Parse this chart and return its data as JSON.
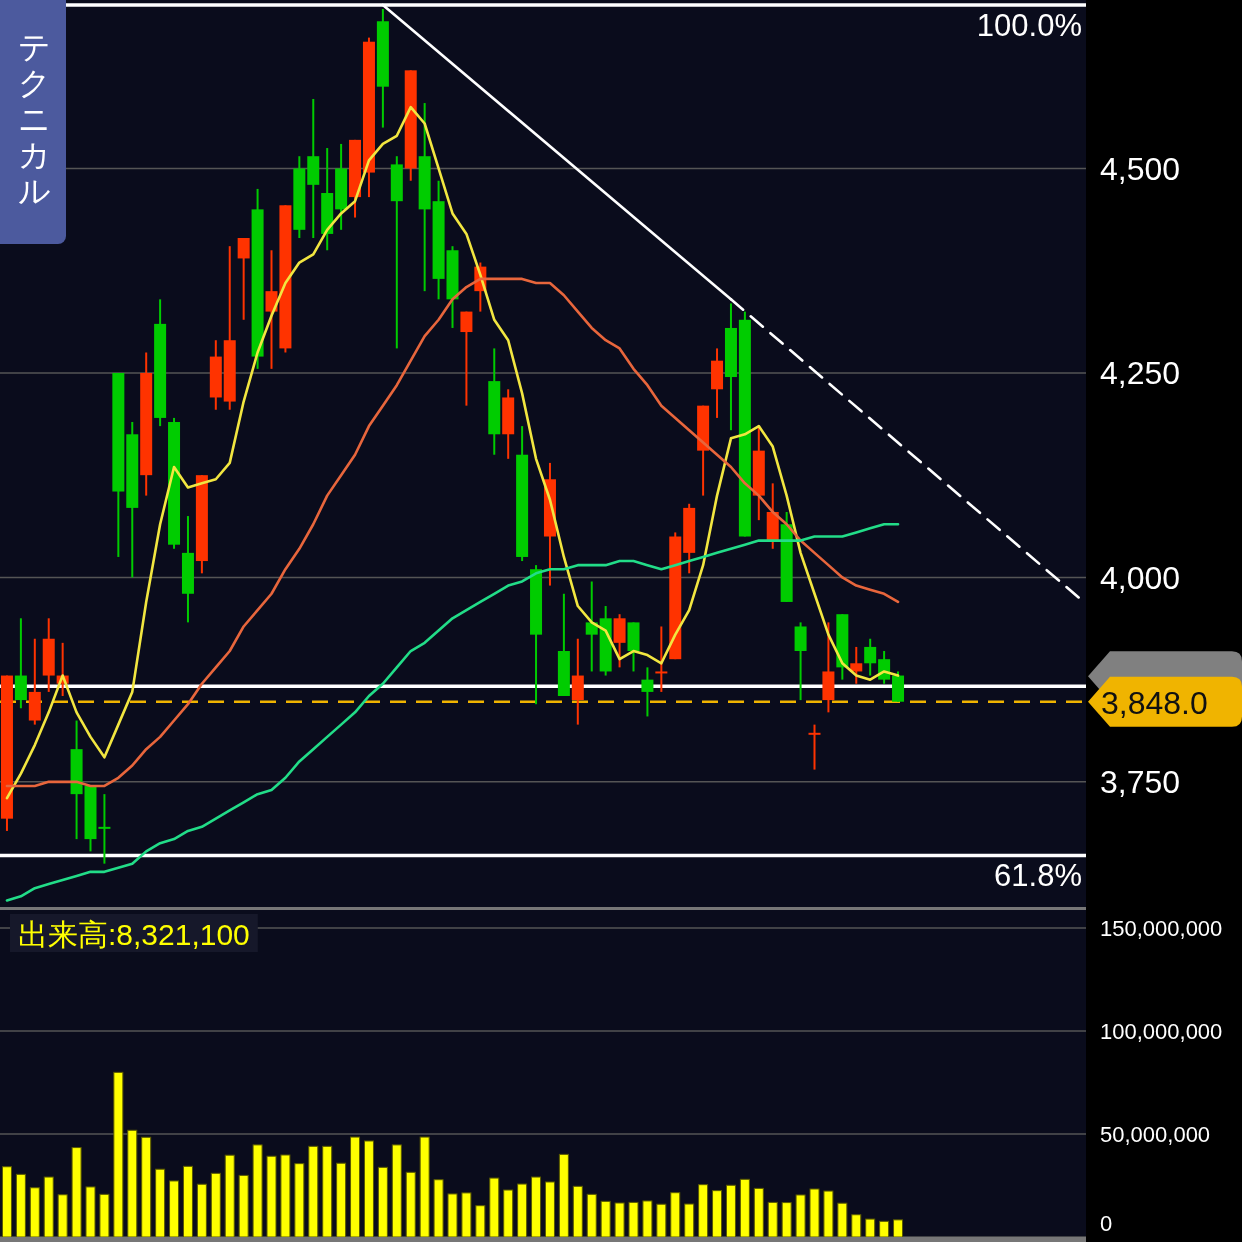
{
  "chart_data": [
    {
      "type": "candlestick",
      "annotations": [
        "テクニカル",
        {
          "text": "100.0%",
          "y": 4700
        },
        {
          "text": "61.8%",
          "y": 3660
        }
      ],
      "categories": [
        null,
        null,
        null,
        null,
        null,
        null,
        null,
        null,
        null,
        null,
        null,
        null,
        null,
        null,
        null,
        null,
        null,
        null,
        null,
        null,
        null,
        null,
        null,
        null,
        null,
        null,
        null,
        null,
        null,
        null,
        null,
        null,
        null,
        null,
        null,
        null,
        null,
        null,
        null,
        null,
        null,
        null,
        null,
        null,
        null,
        null,
        null,
        null,
        null,
        null,
        null,
        null,
        null,
        null,
        null,
        null,
        null,
        null,
        null,
        null,
        null,
        null,
        null,
        null,
        null,
        null,
        null,
        null,
        null,
        null,
        null,
        null,
        null,
        null,
        null,
        null,
        null,
        null
      ],
      "ohlc": [
        [
          3705,
          3880,
          3690,
          3880
        ],
        [
          3880,
          3950,
          3840,
          3850
        ],
        [
          3825,
          3925,
          3820,
          3860
        ],
        [
          3880,
          3950,
          3860,
          3925
        ],
        [
          3870,
          3920,
          3855,
          3880
        ],
        [
          3790,
          3825,
          3680,
          3735
        ],
        [
          3745,
          3745,
          3665,
          3680
        ],
        [
          3695,
          3735,
          3650,
          3695
        ],
        [
          4250,
          4250,
          4025,
          4105
        ],
        [
          4175,
          4190,
          4000,
          4085
        ],
        [
          4125,
          4275,
          4100,
          4250
        ],
        [
          4310,
          4340,
          4185,
          4195
        ],
        [
          4190,
          4195,
          4035,
          4040
        ],
        [
          4030,
          4075,
          3945,
          3980
        ],
        [
          4020,
          4125,
          4005,
          4125
        ],
        [
          4220,
          4290,
          4205,
          4270
        ],
        [
          4215,
          4405,
          4205,
          4290
        ],
        [
          4390,
          4415,
          4315,
          4415
        ],
        [
          4450,
          4475,
          4255,
          4270
        ],
        [
          4325,
          4400,
          4255,
          4350
        ],
        [
          4280,
          4455,
          4275,
          4455
        ],
        [
          4500,
          4515,
          4415,
          4425
        ],
        [
          4515,
          4585,
          4415,
          4480
        ],
        [
          4470,
          4525,
          4400,
          4420
        ],
        [
          4500,
          4530,
          4425,
          4450
        ],
        [
          4465,
          4535,
          4440,
          4535
        ],
        [
          4495,
          4660,
          4465,
          4655
        ],
        [
          4680,
          4695,
          4550,
          4600
        ],
        [
          4505,
          4515,
          4280,
          4460
        ],
        [
          4500,
          4620,
          4485,
          4620
        ],
        [
          4515,
          4580,
          4350,
          4450
        ],
        [
          4460,
          4485,
          4340,
          4365
        ],
        [
          4400,
          4405,
          4305,
          4340
        ],
        [
          4300,
          4325,
          4210,
          4325
        ],
        [
          4350,
          4385,
          4325,
          4380
        ],
        [
          4240,
          4280,
          4150,
          4175
        ],
        [
          4175,
          4230,
          4145,
          4220
        ],
        [
          4150,
          4185,
          4020,
          4025
        ],
        [
          4010,
          4015,
          3845,
          3930
        ],
        [
          4050,
          4140,
          3990,
          4120
        ],
        [
          3910,
          3980,
          3855,
          3855
        ],
        [
          3850,
          3925,
          3820,
          3880
        ],
        [
          3945,
          3995,
          3885,
          3930
        ],
        [
          3950,
          3965,
          3880,
          3885
        ],
        [
          3920,
          3955,
          3890,
          3950
        ],
        [
          3945,
          3945,
          3885,
          3910
        ],
        [
          3875,
          3890,
          3830,
          3860
        ],
        [
          3885,
          3940,
          3860,
          3885
        ],
        [
          3900,
          4055,
          3900,
          4050
        ],
        [
          4030,
          4090,
          4005,
          4085
        ],
        [
          4155,
          4210,
          4100,
          4210
        ],
        [
          4230,
          4280,
          4195,
          4265
        ],
        [
          4305,
          4335,
          4180,
          4245
        ],
        [
          4315,
          4325,
          4050,
          4050
        ],
        [
          4100,
          4185,
          4070,
          4155
        ],
        [
          4045,
          4115,
          4035,
          4080
        ],
        [
          4065,
          4080,
          3970,
          3970
        ],
        [
          3940,
          3945,
          3850,
          3910
        ],
        [
          3810,
          3820,
          3765,
          3810
        ],
        [
          3850,
          3945,
          3835,
          3885
        ],
        [
          3955,
          3955,
          3875,
          3890
        ],
        [
          3885,
          3915,
          3870,
          3895
        ],
        [
          3915,
          3925,
          3880,
          3895
        ],
        [
          3900,
          3910,
          3870,
          3875
        ],
        [
          3880,
          3885,
          3848,
          3848
        ],
        null,
        null,
        null,
        null,
        null,
        null,
        null,
        null,
        null,
        null,
        null,
        null,
        null
      ],
      "colors": [
        "#ff3300",
        "#00cc00",
        "#ff3300",
        "#ff3300",
        "#ff3300",
        "#00cc00",
        "#00cc00",
        "#00cc00",
        "#00cc00",
        "#00cc00",
        "#ff3300",
        "#00cc00",
        "#00cc00",
        "#00cc00",
        "#ff3300",
        "#ff3300",
        "#ff3300",
        "#ff3300",
        "#00cc00",
        "#ff3300",
        "#ff3300",
        "#00cc00",
        "#00cc00",
        "#00cc00",
        "#00cc00",
        "#ff3300",
        "#ff3300",
        "#00cc00",
        "#00cc00",
        "#ff3300",
        "#00cc00",
        "#00cc00",
        "#00cc00",
        "#ff3300",
        "#ff3300",
        "#00cc00",
        "#ff3300",
        "#00cc00",
        "#00cc00",
        "#ff3300",
        "#00cc00",
        "#ff3300",
        "#00cc00",
        "#00cc00",
        "#ff3300",
        "#00cc00",
        "#00cc00",
        "#ff3300",
        "#ff3300",
        "#ff3300",
        "#ff3300",
        "#ff3300",
        "#00cc00",
        "#00cc00",
        "#ff3300",
        "#ff3300",
        "#00cc00",
        "#00cc00",
        "#ff3300",
        "#ff3300",
        "#00cc00",
        "#ff3300",
        "#00cc00",
        "#00cc00",
        "#00cc00",
        null,
        null,
        null,
        null,
        null,
        null,
        null,
        null,
        null,
        null,
        null,
        null,
        null
      ],
      "series": [
        {
          "type": "line",
          "color": "#f2e640",
          "values": [
            3730,
            3760,
            3795,
            3835,
            3880,
            3835,
            3805,
            3780,
            3820,
            3860,
            3970,
            4065,
            4135,
            4110,
            4115,
            4120,
            4140,
            4215,
            4275,
            4320,
            4360,
            4385,
            4395,
            4425,
            4445,
            4460,
            4510,
            4530,
            4540,
            4575,
            4555,
            4500,
            4445,
            4420,
            4370,
            4315,
            4290,
            4225,
            4145,
            4095,
            4025,
            3965,
            3945,
            3935,
            3900,
            3910,
            3905,
            3895,
            3930,
            3960,
            4015,
            4100,
            4170,
            4175,
            4185,
            4160,
            4100,
            4030,
            3980,
            3930,
            3895,
            3880,
            3875,
            3885,
            3880,
            null,
            null,
            null,
            null,
            null,
            null,
            null,
            null,
            null,
            null,
            null,
            null,
            null
          ]
        },
        {
          "type": "line",
          "color": "#e8663c",
          "values": [
            3745,
            3745,
            3745,
            3750,
            3750,
            3750,
            3745,
            3745,
            3755,
            3770,
            3790,
            3805,
            3825,
            3845,
            3870,
            3890,
            3910,
            3940,
            3960,
            3980,
            4010,
            4035,
            4065,
            4100,
            4125,
            4150,
            4185,
            4210,
            4235,
            4265,
            4295,
            4315,
            4340,
            4355,
            4365,
            4365,
            4365,
            4365,
            4360,
            4360,
            4345,
            4325,
            4305,
            4290,
            4280,
            4255,
            4235,
            4210,
            4195,
            4180,
            4165,
            4150,
            4135,
            4115,
            4100,
            4080,
            4065,
            4045,
            4030,
            4015,
            4000,
            3990,
            3985,
            3980,
            3970,
            null,
            null,
            null,
            null,
            null,
            null,
            null,
            null,
            null,
            null,
            null,
            null,
            null
          ]
        },
        {
          "type": "line",
          "color": "#22dd88",
          "values": [
            3605,
            3610,
            3620,
            3625,
            3630,
            3635,
            3640,
            3640,
            3645,
            3650,
            3665,
            3675,
            3680,
            3690,
            3695,
            3705,
            3715,
            3725,
            3735,
            3740,
            3755,
            3775,
            3790,
            3805,
            3820,
            3835,
            3855,
            3870,
            3890,
            3910,
            3920,
            3935,
            3950,
            3960,
            3970,
            3980,
            3990,
            3995,
            4005,
            4010,
            4010,
            4015,
            4015,
            4015,
            4020,
            4020,
            4015,
            4010,
            4015,
            4020,
            4025,
            4030,
            4035,
            4040,
            4045,
            4045,
            4045,
            4045,
            4050,
            4050,
            4050,
            4055,
            4060,
            4065,
            4065,
            null,
            null,
            null,
            null,
            null,
            null,
            null,
            null,
            null,
            null,
            null,
            null,
            null
          ]
        },
        {
          "type": "line",
          "color": "#ffffff",
          "values": [
            null,
            null,
            null,
            null,
            null,
            null,
            null,
            null,
            null,
            null,
            null,
            null,
            null,
            null,
            null,
            null,
            null,
            null,
            null,
            null,
            null,
            null,
            null,
            null,
            null,
            null,
            null,
            4700,
            null,
            null,
            null,
            null,
            null,
            null,
            null,
            null,
            null,
            null,
            null,
            null,
            null,
            null,
            null,
            null,
            null,
            null,
            null,
            null,
            null,
            null,
            null,
            null,
            4340,
            null,
            null,
            null,
            null,
            null,
            null,
            null,
            null,
            null,
            null,
            null,
            null,
            null,
            null,
            null,
            null,
            null,
            null,
            null,
            null,
            null,
            null,
            null,
            null,
            null
          ]
        },
        {
          "type": "line",
          "color": "#ffffff",
          "line_style": "dashed",
          "values": [
            null,
            null,
            null,
            null,
            null,
            null,
            null,
            null,
            null,
            null,
            null,
            null,
            null,
            null,
            null,
            null,
            null,
            null,
            null,
            null,
            null,
            null,
            null,
            null,
            null,
            null,
            null,
            null,
            null,
            null,
            null,
            null,
            null,
            null,
            null,
            null,
            null,
            null,
            null,
            null,
            null,
            null,
            null,
            null,
            null,
            null,
            null,
            null,
            null,
            null,
            null,
            null,
            4340,
            null,
            null,
            null,
            null,
            null,
            null,
            null,
            null,
            null,
            null,
            null,
            null,
            null,
            null,
            null,
            null,
            null,
            null,
            null,
            null,
            null,
            null,
            null,
            null,
            3975
          ]
        }
      ],
      "ref_lines": [
        {
          "axis": "y",
          "value": 4700,
          "color": "#ffffff"
        },
        {
          "axis": "y",
          "value": 3660,
          "color": "#ffffff"
        },
        {
          "axis": "y",
          "value": 3867,
          "label": null,
          "color": "#ffffff"
        },
        {
          "axis": "y",
          "value": 3848,
          "label": "3,848.0",
          "color": "#f0b400",
          "line_style": "dashed"
        }
      ],
      "ylim": [
        3597,
        4706
      ],
      "yticks": [
        {
          "value": 3750,
          "label": "3,750"
        },
        {
          "value": 4000,
          "label": "4,000"
        },
        {
          "value": 4250,
          "label": "4,250"
        },
        {
          "value": 4500,
          "label": "4,500"
        }
      ],
      "grid": "y"
    },
    {
      "type": "bar",
      "title": "出来高:8,321,100",
      "color": "#ffff00",
      "categories": [
        null,
        null,
        null,
        null,
        null,
        null,
        null,
        null,
        null,
        null,
        null,
        null,
        null,
        null,
        null,
        null,
        null,
        null,
        null,
        null,
        null,
        null,
        null,
        null,
        null,
        null,
        null,
        null,
        null,
        null,
        null,
        null,
        null,
        null,
        null,
        null,
        null,
        null,
        null,
        null,
        null,
        null,
        null,
        null,
        null,
        null,
        null,
        null,
        null,
        null,
        null,
        null,
        null,
        null,
        null,
        null,
        null,
        null,
        null,
        null,
        null,
        null,
        null,
        null,
        null,
        null,
        null,
        null,
        null,
        null,
        null,
        null,
        null,
        null,
        null,
        null,
        null,
        null
      ],
      "values": [
        34100000,
        30400000,
        23900000,
        29100000,
        20500000,
        43400000,
        24300000,
        20700000,
        79900000,
        51800000,
        48400000,
        32900000,
        27200000,
        34300000,
        25600000,
        30900000,
        39700000,
        29900000,
        44700000,
        39200000,
        39800000,
        35600000,
        44000000,
        44000000,
        35800000,
        48500000,
        46600000,
        33800000,
        44700000,
        31400000,
        48500000,
        27800000,
        20900000,
        21400000,
        15200000,
        28600000,
        22800000,
        25700000,
        29100000,
        26700000,
        40100000,
        24600000,
        20700000,
        17300000,
        16500000,
        16800000,
        17500000,
        15900000,
        21500000,
        16000000,
        25400000,
        22500000,
        25100000,
        28000000,
        23600000,
        16800000,
        16700000,
        20400000,
        23300000,
        22300000,
        16400000,
        10800000,
        8700000,
        7600000,
        8321100,
        null,
        null,
        null,
        null,
        null,
        null,
        null,
        null,
        null,
        null,
        null,
        null,
        null
      ],
      "ylim": [
        0,
        158700000
      ],
      "yticks": [
        0,
        {
          "value": 50000000,
          "label": "50,000,000"
        },
        {
          "value": 100000000,
          "label": "100,000,000"
        },
        {
          "value": 150000000,
          "label": "150,000,000"
        }
      ],
      "grid": "y"
    }
  ]
}
